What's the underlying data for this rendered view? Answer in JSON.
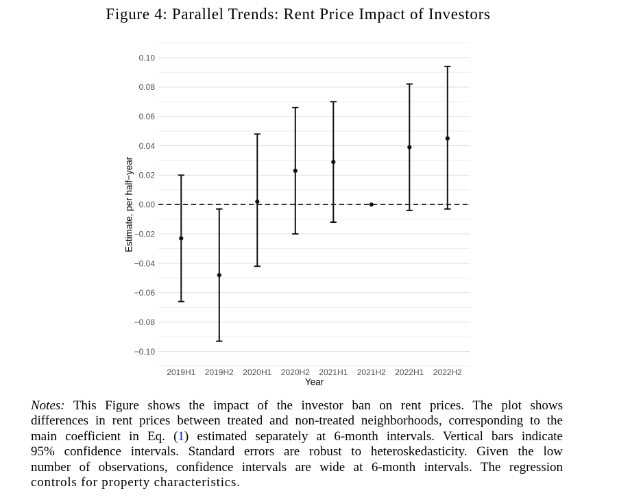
{
  "figure": {
    "caption": "Figure 4: Parallel Trends: Rent Price Impact of Investors"
  },
  "colors": {
    "link_blue": "#1414ff",
    "text_black": "#000000",
    "tick_label_grey": "#4d4d4d",
    "grid_major": "#dedede",
    "grid_minor": "#ececec",
    "series_black": "#101010"
  },
  "chart_data": {
    "type": "scatter",
    "subtype": "coefficient-plot-with-error-bars",
    "title": "",
    "xlabel": "Year",
    "ylabel": "Estimate, per half−year",
    "categories": [
      "2019H1",
      "2019H2",
      "2020H1",
      "2020H2",
      "2021H1",
      "2021H2",
      "2022H1",
      "2022H2"
    ],
    "series": [
      {
        "name": "estimate",
        "values": [
          -0.023,
          -0.048,
          0.002,
          0.023,
          0.029,
          0.0,
          0.039,
          0.045
        ]
      },
      {
        "name": "ci_low_95",
        "values": [
          -0.066,
          -0.093,
          -0.042,
          -0.02,
          -0.012,
          0.0,
          -0.004,
          -0.003
        ]
      },
      {
        "name": "ci_high_95",
        "values": [
          0.02,
          -0.003,
          0.048,
          0.066,
          0.07,
          0.0,
          0.082,
          0.094
        ]
      }
    ],
    "reference_category": "2021H2",
    "zero_line": {
      "value": 0.0,
      "style": "dashed"
    },
    "ylim": [
      -0.11,
      0.11
    ],
    "y_major_ticks": [
      {
        "value": 0.1,
        "label": "0.10"
      },
      {
        "value": 0.08,
        "label": "0.08"
      },
      {
        "value": 0.06,
        "label": "0.06"
      },
      {
        "value": 0.04,
        "label": "0.04"
      },
      {
        "value": 0.02,
        "label": "0.02"
      },
      {
        "value": 0.0,
        "label": "0.00"
      },
      {
        "value": -0.02,
        "label": "−0.02"
      },
      {
        "value": -0.04,
        "label": "−0.04"
      },
      {
        "value": -0.06,
        "label": "−0.06"
      },
      {
        "value": -0.08,
        "label": "−0.08"
      },
      {
        "value": -0.1,
        "label": "−0.10"
      }
    ],
    "grid": {
      "major_step": 0.02,
      "minor_step": 0.01,
      "vertical": false
    },
    "legend": "none"
  },
  "notes": {
    "lines": [
      [
        {
          "text": "Notes:",
          "style": "italic"
        },
        {
          "text": " This Figure shows the impact of the investor ban on rent prices. The plot shows",
          "style": "normal"
        }
      ],
      [
        {
          "text": "differences in rent prices between treated and non-treated neighborhoods, corresponding to the",
          "style": "normal"
        }
      ],
      [
        {
          "text": "main coefficient in Eq. (",
          "style": "normal"
        },
        {
          "text": "1",
          "style": "link"
        },
        {
          "text": ") estimated separately at 6-month intervals. Vertical bars indicate",
          "style": "normal"
        }
      ],
      [
        {
          "text": "95% confidence intervals. Standard errors are robust to heteroskedasticity. Given the low",
          "style": "normal"
        }
      ],
      [
        {
          "text": "number of observations, confidence intervals are wide at 6-month intervals. The regression",
          "style": "normal"
        }
      ],
      [
        {
          "text": "controls for property characteristics.",
          "style": "normal"
        }
      ]
    ]
  }
}
